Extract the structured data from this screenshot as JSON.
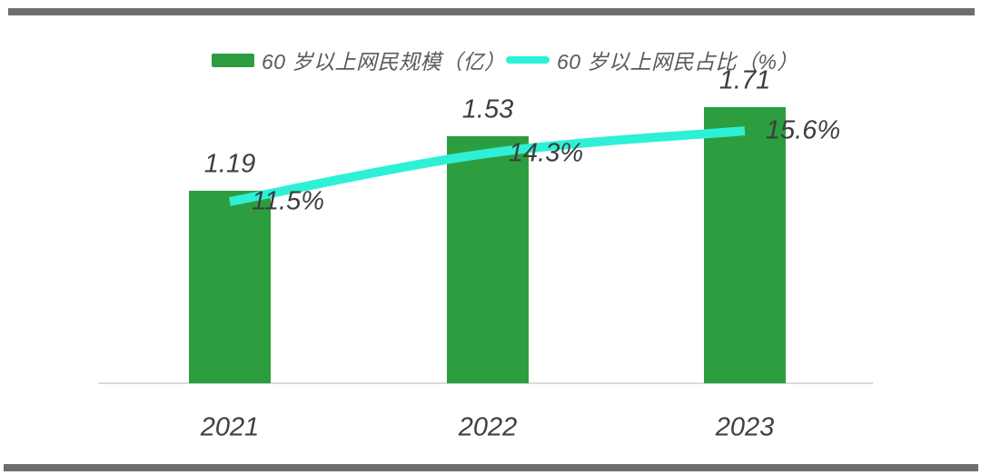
{
  "page": {
    "background": "#ffffff",
    "divider_color": "#716c6c"
  },
  "legend": [
    {
      "label": "60 岁以上网民规模（亿）",
      "swatch": "bar",
      "color": "#2d9e40"
    },
    {
      "label": "60 岁以上网民占比（%）",
      "swatch": "line",
      "color": "#2ef0d6"
    }
  ],
  "chart_data": {
    "type": "combo",
    "categories": [
      "2021",
      "2022",
      "2023"
    ],
    "series": [
      {
        "name": "60 岁以上网民规模（亿）",
        "type": "bar",
        "color": "#2d9e40",
        "values": [
          1.19,
          1.53,
          1.71
        ],
        "labels": [
          "1.19",
          "1.53",
          "1.71"
        ]
      },
      {
        "name": "60 岁以上网民占比（%）",
        "type": "line",
        "color": "#2ef0d6",
        "values": [
          11.5,
          14.3,
          15.6
        ],
        "labels": [
          "11.5%",
          "14.3%",
          "15.6%"
        ]
      }
    ],
    "title": "",
    "xlabel": "",
    "ylabel": "",
    "legend_position": "top",
    "grid": false,
    "value_axes_visible": false,
    "label_style": "italic",
    "axis_line_color": "#dadada"
  }
}
